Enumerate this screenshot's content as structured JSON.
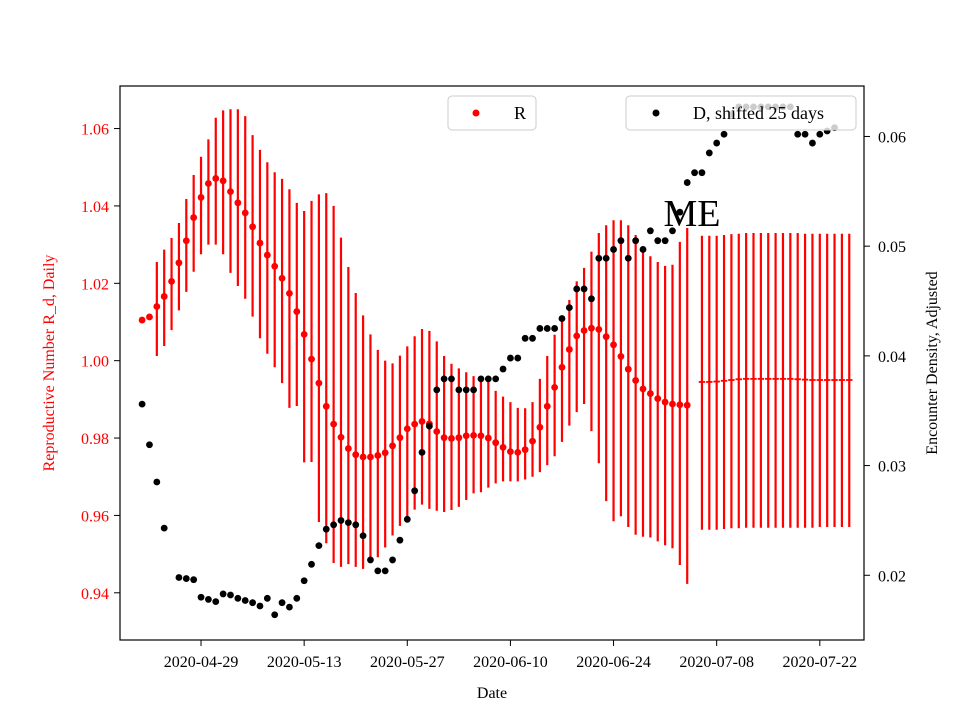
{
  "chart_data": {
    "type": "scatter",
    "title": "ME",
    "xlabel": "Date",
    "ylabel_left": "Reproductive Number R_d, Daily",
    "ylabel_right": "Encounter Density, Adjusted",
    "x_tick_labels": [
      "2020-04-29",
      "2020-05-13",
      "2020-05-27",
      "2020-06-10",
      "2020-06-24",
      "2020-07-08",
      "2020-07-22"
    ],
    "y_left_tick_labels": [
      "0.94",
      "0.96",
      "0.98",
      "1.00",
      "1.02",
      "1.04",
      "1.06"
    ],
    "y_right_tick_labels": [
      "0.02",
      "0.03",
      "0.04",
      "0.05",
      "0.06"
    ],
    "y_left_lim": [
      0.9278,
      1.071
    ],
    "y_right_lim": [
      0.0141,
      0.0646
    ],
    "x_range": [
      "2020-04-18",
      "2020-07-28"
    ],
    "legend": [
      {
        "label": "R",
        "color": "#ff0000",
        "placement": "upper-center"
      },
      {
        "label": "D, shifted 25 days",
        "color": "#000000",
        "placement": "upper-right"
      }
    ],
    "colors": {
      "R": "#ff0000",
      "D": "#000000",
      "left_axis_text": "#ff0000"
    },
    "series": [
      {
        "name": "R",
        "axis": "left",
        "x_start": "2020-04-21",
        "y": [
          1.0105,
          1.0113,
          1.014,
          1.0166,
          1.0205,
          1.0253,
          1.031,
          1.037,
          1.0422,
          1.0458,
          1.0471,
          1.0465,
          1.0437,
          1.0408,
          1.0382,
          1.0346,
          1.0304,
          1.0273,
          1.0244,
          1.0213,
          1.0174,
          1.0127,
          1.0068,
          1.0004,
          0.9942,
          0.9882,
          0.9836,
          0.9802,
          0.9773,
          0.9757,
          0.9751,
          0.9751,
          0.9755,
          0.9762,
          0.978,
          0.9801,
          0.9824,
          0.9836,
          0.9843,
          0.9837,
          0.9817,
          0.9801,
          0.9799,
          0.9801,
          0.9806,
          0.9807,
          0.9806,
          0.98,
          0.9788,
          0.9776,
          0.9765,
          0.9763,
          0.977,
          0.9792,
          0.9828,
          0.9882,
          0.9931,
          0.9983,
          1.0029,
          1.0064,
          1.0078,
          1.0084,
          1.0081,
          1.0062,
          1.0041,
          1.0011,
          0.9978,
          0.9949,
          0.9927,
          0.9915,
          0.9902,
          0.9893,
          0.9888,
          0.9886,
          0.9885
        ],
        "yerr_low": [
          1.0105,
          1.0113,
          1.0012,
          1.0038,
          1.0079,
          1.013,
          1.0178,
          1.023,
          1.0275,
          1.03,
          1.03,
          1.0275,
          1.0227,
          1.0193,
          1.016,
          1.0114,
          1.0058,
          1.0018,
          0.9983,
          0.9942,
          0.9878,
          0.9883,
          0.9737,
          0.9738,
          0.9583,
          0.9528,
          0.9477,
          0.9467,
          0.9474,
          0.9467,
          0.9462,
          0.9478,
          0.9492,
          0.9517,
          0.9548,
          0.9573,
          0.959,
          0.9615,
          0.9628,
          0.9617,
          0.9612,
          0.9609,
          0.9614,
          0.9622,
          0.964,
          0.9657,
          0.966,
          0.9672,
          0.9683,
          0.9688,
          0.9688,
          0.9688,
          0.9693,
          0.97,
          0.9712,
          0.973,
          0.9753,
          0.979,
          0.9832,
          0.9867,
          0.9888,
          0.9818,
          0.9735,
          0.9637,
          0.9585,
          0.9598,
          0.957,
          0.955,
          0.9545,
          0.9543,
          0.9533,
          0.9523,
          0.9515,
          0.9472,
          0.9423
        ],
        "yerr_high": [
          1.0105,
          1.0113,
          1.0255,
          1.0287,
          1.0317,
          1.0356,
          1.0418,
          1.048,
          1.0527,
          1.0572,
          1.0628,
          1.0647,
          1.065,
          1.065,
          1.0632,
          1.0583,
          1.0545,
          1.0513,
          1.0487,
          1.047,
          1.0443,
          1.0408,
          1.0387,
          1.0413,
          1.043,
          1.0433,
          1.04,
          1.0318,
          1.0242,
          1.0175,
          1.0117,
          1.0068,
          1.0028,
          1.0,
          0.9993,
          1.0013,
          1.0037,
          1.0063,
          1.0082,
          1.0077,
          1.005,
          1.0012,
          0.9992,
          0.998,
          0.997,
          0.996,
          0.996,
          0.9955,
          0.9922,
          0.9907,
          0.9893,
          0.9878,
          0.9877,
          0.9893,
          0.9953,
          1.0012,
          1.0067,
          1.0112,
          1.0157,
          1.0205,
          1.024,
          1.0282,
          1.033,
          1.035,
          1.0363,
          1.0363,
          1.035,
          1.0325,
          1.0292,
          1.027,
          1.0255,
          1.0245,
          1.0248,
          1.0307,
          1.0343
        ]
      },
      {
        "name": "R",
        "axis": "left",
        "x_start": "2020-07-06",
        "y": [
          0.9945,
          0.9945,
          0.9946,
          0.9948,
          0.995,
          0.9952,
          0.9953,
          0.9953,
          0.9953,
          0.9953,
          0.9953,
          0.9953,
          0.9953,
          0.9952,
          0.9951,
          0.995,
          0.995,
          0.995,
          0.995,
          0.995,
          0.995
        ],
        "yerr_low": [
          0.9563,
          0.9563,
          0.9563,
          0.9565,
          0.9567,
          0.9567,
          0.9568,
          0.9568,
          0.9568,
          0.9568,
          0.9568,
          0.9568,
          0.9568,
          0.9568,
          0.9568,
          0.9568,
          0.957,
          0.957,
          0.957,
          0.957,
          0.957
        ],
        "yerr_high": [
          1.0323,
          1.0323,
          1.0323,
          1.0325,
          1.0327,
          1.0328,
          1.033,
          1.033,
          1.033,
          1.033,
          1.033,
          1.033,
          1.033,
          1.033,
          1.0328,
          1.0328,
          1.0328,
          1.0328,
          1.0328,
          1.0328,
          1.0328
        ]
      },
      {
        "name": "D, shifted 25 days",
        "axis": "right",
        "points": [
          [
            "2020-04-21",
            0.0356
          ],
          [
            "2020-04-22",
            0.0319
          ],
          [
            "2020-04-23",
            0.0285
          ],
          [
            "2020-04-24",
            0.0243
          ],
          [
            "2020-04-26",
            0.0198
          ],
          [
            "2020-04-27",
            0.0197
          ],
          [
            "2020-04-28",
            0.0196
          ],
          [
            "2020-04-29",
            0.018
          ],
          [
            "2020-04-30",
            0.0178
          ],
          [
            "2020-05-01",
            0.0176
          ],
          [
            "2020-05-02",
            0.0183
          ],
          [
            "2020-05-03",
            0.0182
          ],
          [
            "2020-05-04",
            0.0179
          ],
          [
            "2020-05-05",
            0.0177
          ],
          [
            "2020-05-06",
            0.0175
          ],
          [
            "2020-05-07",
            0.0172
          ],
          [
            "2020-05-08",
            0.0179
          ],
          [
            "2020-05-09",
            0.0164
          ],
          [
            "2020-05-10",
            0.0175
          ],
          [
            "2020-05-11",
            0.0171
          ],
          [
            "2020-05-12",
            0.0179
          ],
          [
            "2020-05-13",
            0.0195
          ],
          [
            "2020-05-14",
            0.021
          ],
          [
            "2020-05-15",
            0.0227
          ],
          [
            "2020-05-16",
            0.0242
          ],
          [
            "2020-05-17",
            0.0246
          ],
          [
            "2020-05-18",
            0.025
          ],
          [
            "2020-05-19",
            0.0248
          ],
          [
            "2020-05-20",
            0.0246
          ],
          [
            "2020-05-21",
            0.0236
          ],
          [
            "2020-05-22",
            0.0214
          ],
          [
            "2020-05-23",
            0.0204
          ],
          [
            "2020-05-24",
            0.0204
          ],
          [
            "2020-05-25",
            0.0214
          ],
          [
            "2020-05-26",
            0.0232
          ],
          [
            "2020-05-27",
            0.0251
          ],
          [
            "2020-05-28",
            0.0277
          ],
          [
            "2020-05-29",
            0.0312
          ],
          [
            "2020-05-30",
            0.0336
          ],
          [
            "2020-05-31",
            0.0369
          ],
          [
            "2020-06-01",
            0.0379
          ],
          [
            "2020-06-02",
            0.0379
          ],
          [
            "2020-06-03",
            0.0369
          ],
          [
            "2020-06-04",
            0.0369
          ],
          [
            "2020-06-05",
            0.0369
          ],
          [
            "2020-06-06",
            0.0379
          ],
          [
            "2020-06-07",
            0.0379
          ],
          [
            "2020-06-08",
            0.0379
          ],
          [
            "2020-06-09",
            0.0388
          ],
          [
            "2020-06-10",
            0.0398
          ],
          [
            "2020-06-11",
            0.0398
          ],
          [
            "2020-06-12",
            0.0416
          ],
          [
            "2020-06-13",
            0.0416
          ],
          [
            "2020-06-14",
            0.0425
          ],
          [
            "2020-06-15",
            0.0425
          ],
          [
            "2020-06-16",
            0.0425
          ],
          [
            "2020-06-17",
            0.0434
          ],
          [
            "2020-06-18",
            0.0444
          ],
          [
            "2020-06-19",
            0.0461
          ],
          [
            "2020-06-20",
            0.0461
          ],
          [
            "2020-06-21",
            0.0452
          ],
          [
            "2020-06-22",
            0.0489
          ],
          [
            "2020-06-23",
            0.0489
          ],
          [
            "2020-06-24",
            0.0497
          ],
          [
            "2020-06-25",
            0.0505
          ],
          [
            "2020-06-26",
            0.0489
          ],
          [
            "2020-06-27",
            0.0505
          ],
          [
            "2020-06-28",
            0.0497
          ],
          [
            "2020-06-29",
            0.0514
          ],
          [
            "2020-06-30",
            0.0505
          ],
          [
            "2020-07-01",
            0.0505
          ],
          [
            "2020-07-02",
            0.0514
          ],
          [
            "2020-07-03",
            0.0531
          ],
          [
            "2020-07-04",
            0.0558
          ],
          [
            "2020-07-05",
            0.0567
          ],
          [
            "2020-07-06",
            0.0567
          ],
          [
            "2020-07-07",
            0.0585
          ],
          [
            "2020-07-08",
            0.0594
          ],
          [
            "2020-07-09",
            0.0602
          ],
          [
            "2020-07-10",
            0.062
          ],
          [
            "2020-07-11",
            0.0627
          ],
          [
            "2020-07-12",
            0.0627
          ],
          [
            "2020-07-13",
            0.0627
          ],
          [
            "2020-07-14",
            0.0627
          ],
          [
            "2020-07-15",
            0.0627
          ],
          [
            "2020-07-16",
            0.0627
          ],
          [
            "2020-07-17",
            0.0627
          ],
          [
            "2020-07-18",
            0.0627
          ],
          [
            "2020-07-19",
            0.0602
          ],
          [
            "2020-07-20",
            0.0602
          ],
          [
            "2020-07-21",
            0.0594
          ],
          [
            "2020-07-22",
            0.0602
          ],
          [
            "2020-07-23",
            0.0605
          ],
          [
            "2020-07-24",
            0.0608
          ]
        ]
      }
    ],
    "grid": false
  }
}
